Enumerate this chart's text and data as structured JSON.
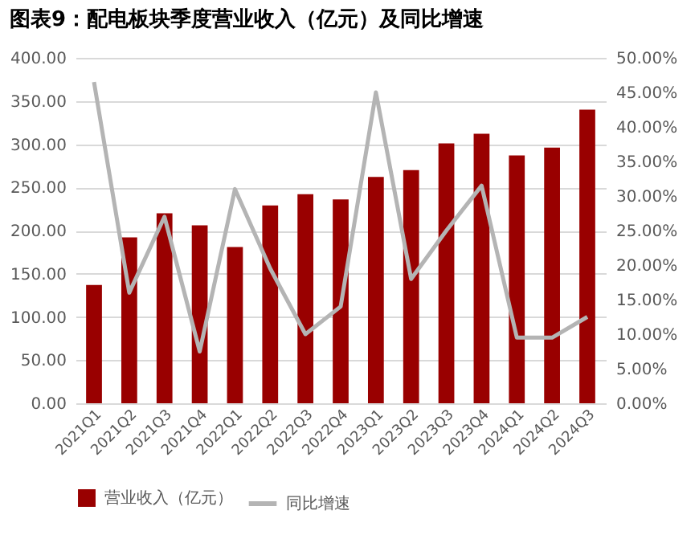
{
  "chart_data": {
    "type": "bar",
    "title": "图表9：配电板块季度营业收入（亿元）及同比增速",
    "categories": [
      "2021Q1",
      "2021Q2",
      "2021Q3",
      "2021Q4",
      "2022Q1",
      "2022Q2",
      "2022Q3",
      "2022Q4",
      "2023Q1",
      "2023Q2",
      "2023Q3",
      "2023Q4",
      "2024Q1",
      "2024Q2",
      "2024Q3"
    ],
    "series": [
      {
        "name": "营业收入（亿元）",
        "color": "#990000",
        "values": [
          137,
          192,
          220,
          206,
          181,
          229,
          242,
          236,
          262,
          270,
          301,
          312,
          287,
          296,
          340
        ]
      },
      {
        "name": "同比增速",
        "type": "line",
        "axis": "y2",
        "color": "#b4b4b4",
        "values": [
          46.5,
          16,
          27,
          7.5,
          31,
          19.5,
          10,
          14,
          45,
          18,
          25,
          31.5,
          9.5,
          9.5,
          12.5
        ]
      }
    ],
    "ylim": [
      0,
      400
    ],
    "yticks": [
      {
        "value": 0,
        "label": "0.00"
      },
      {
        "value": 50,
        "label": "50.00"
      },
      {
        "value": 100,
        "label": "100.00"
      },
      {
        "value": 150,
        "label": "150.00"
      },
      {
        "value": 200,
        "label": "200.00"
      },
      {
        "value": 250,
        "label": "250.00"
      },
      {
        "value": 300,
        "label": "300.00"
      },
      {
        "value": 350,
        "label": "350.00"
      },
      {
        "value": 400,
        "label": "400.00"
      }
    ],
    "y2lim": [
      0,
      50
    ],
    "y2ticks": [
      {
        "value": 0,
        "label": "0.00%"
      },
      {
        "value": 5,
        "label": "5.00%"
      },
      {
        "value": 10,
        "label": "10.00%"
      },
      {
        "value": 15,
        "label": "15.00%"
      },
      {
        "value": 20,
        "label": "20.00%"
      },
      {
        "value": 25,
        "label": "25.00%"
      },
      {
        "value": 30,
        "label": "30.00%"
      },
      {
        "value": 35,
        "label": "35.00%"
      },
      {
        "value": 40,
        "label": "40.00%"
      },
      {
        "value": 45,
        "label": "45.00%"
      },
      {
        "value": 50,
        "label": "50.00%"
      }
    ],
    "grid": "y",
    "legend": "bottom"
  }
}
